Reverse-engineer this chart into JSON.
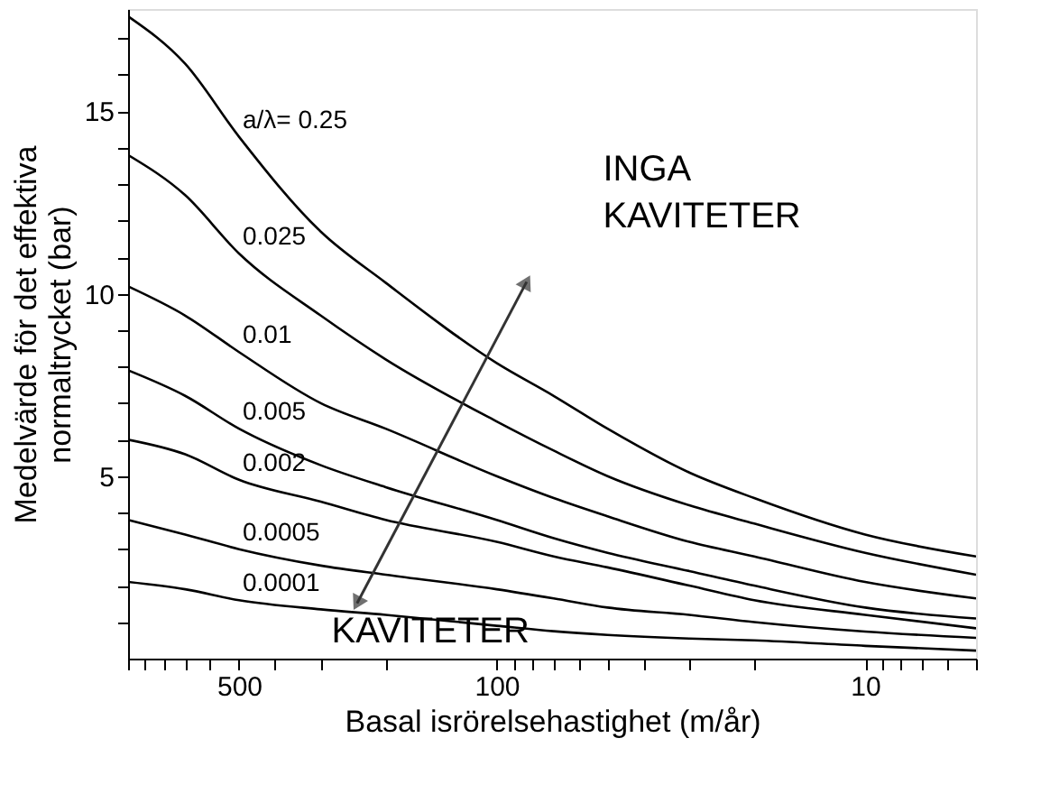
{
  "chart_data": {
    "type": "line",
    "xlabel": "Basal isrörelsehastighet (m/år)",
    "ylabel": "Medelvärde för det effektiva\nnormaltrycket (bar)",
    "x": [
      1000,
      700,
      500,
      300,
      200,
      100,
      70,
      50,
      30,
      20,
      10,
      5
    ],
    "series": [
      {
        "name": "a/λ= 0.25",
        "color": "#000000",
        "values": [
          17.6,
          16.3,
          14.3,
          11.7,
          10.3,
          8.1,
          7.2,
          6.3,
          5.1,
          4.4,
          3.4,
          2.8
        ]
      },
      {
        "name": "0.025",
        "color": "#000000",
        "values": [
          13.8,
          12.7,
          11.1,
          9.4,
          8.2,
          6.5,
          5.7,
          5.0,
          4.2,
          3.7,
          2.9,
          2.3
        ]
      },
      {
        "name": "0.01",
        "color": "#000000",
        "values": [
          10.2,
          9.4,
          8.4,
          7.0,
          6.3,
          5.0,
          4.4,
          3.9,
          3.2,
          2.8,
          2.1,
          1.65
        ]
      },
      {
        "name": "0.005",
        "color": "#000000",
        "values": [
          7.9,
          7.2,
          6.3,
          5.3,
          4.7,
          3.8,
          3.3,
          2.9,
          2.4,
          2.0,
          1.4,
          1.1
        ]
      },
      {
        "name": "0.002",
        "color": "#000000",
        "values": [
          6.0,
          5.6,
          4.9,
          4.3,
          3.8,
          3.2,
          2.8,
          2.5,
          2.0,
          1.6,
          1.2,
          0.83
        ]
      },
      {
        "name": "0.0005",
        "color": "#000000",
        "values": [
          3.8,
          3.4,
          3.0,
          2.55,
          2.3,
          1.9,
          1.65,
          1.4,
          1.2,
          1.0,
          0.74,
          0.57
        ]
      },
      {
        "name": "0.0001",
        "color": "#000000",
        "values": [
          2.1,
          1.9,
          1.6,
          1.35,
          1.2,
          0.9,
          0.75,
          0.65,
          0.55,
          0.5,
          0.35,
          0.22
        ]
      }
    ],
    "log": "x",
    "xlim": [
      1000,
      5
    ],
    "ylim": [
      0,
      17.8
    ],
    "xticks": [
      {
        "value": 1000,
        "label": null
      },
      {
        "value": 900,
        "label": null
      },
      {
        "value": 800,
        "label": null
      },
      {
        "value": 700,
        "label": null
      },
      {
        "value": 600,
        "label": null
      },
      500,
      {
        "value": 400,
        "label": null
      },
      {
        "value": 300,
        "label": null
      },
      {
        "value": 200,
        "label": null
      },
      100,
      {
        "value": 90,
        "label": null
      },
      {
        "value": 80,
        "label": null
      },
      {
        "value": 70,
        "label": null
      },
      {
        "value": 60,
        "label": null
      },
      {
        "value": 50,
        "label": null
      },
      {
        "value": 40,
        "label": null
      },
      {
        "value": 30,
        "label": null
      },
      {
        "value": 20,
        "label": null
      },
      10,
      {
        "value": 9,
        "label": null
      },
      {
        "value": 8,
        "label": null
      },
      {
        "value": 7,
        "label": null
      },
      {
        "value": 6,
        "label": null
      },
      {
        "value": 5,
        "label": null
      }
    ],
    "yticks": [
      {
        "value": 1,
        "label": null
      },
      {
        "value": 2,
        "label": null
      },
      {
        "value": 3,
        "label": null
      },
      {
        "value": 4,
        "label": null
      },
      5,
      {
        "value": 6,
        "label": null
      },
      {
        "value": 7,
        "label": null
      },
      {
        "value": 8,
        "label": null
      },
      {
        "value": 9,
        "label": null
      },
      10,
      {
        "value": 11,
        "label": null
      },
      {
        "value": 12,
        "label": null
      },
      {
        "value": 13,
        "label": null
      },
      {
        "value": 14,
        "label": null
      },
      15,
      {
        "value": 16,
        "label": null
      },
      {
        "value": 17,
        "label": null
      }
    ],
    "annotations": [
      "INGA\nKAVITETER",
      "KAVITETER"
    ],
    "grid": false,
    "legend": false,
    "marker": "none",
    "line_style": "solid"
  }
}
